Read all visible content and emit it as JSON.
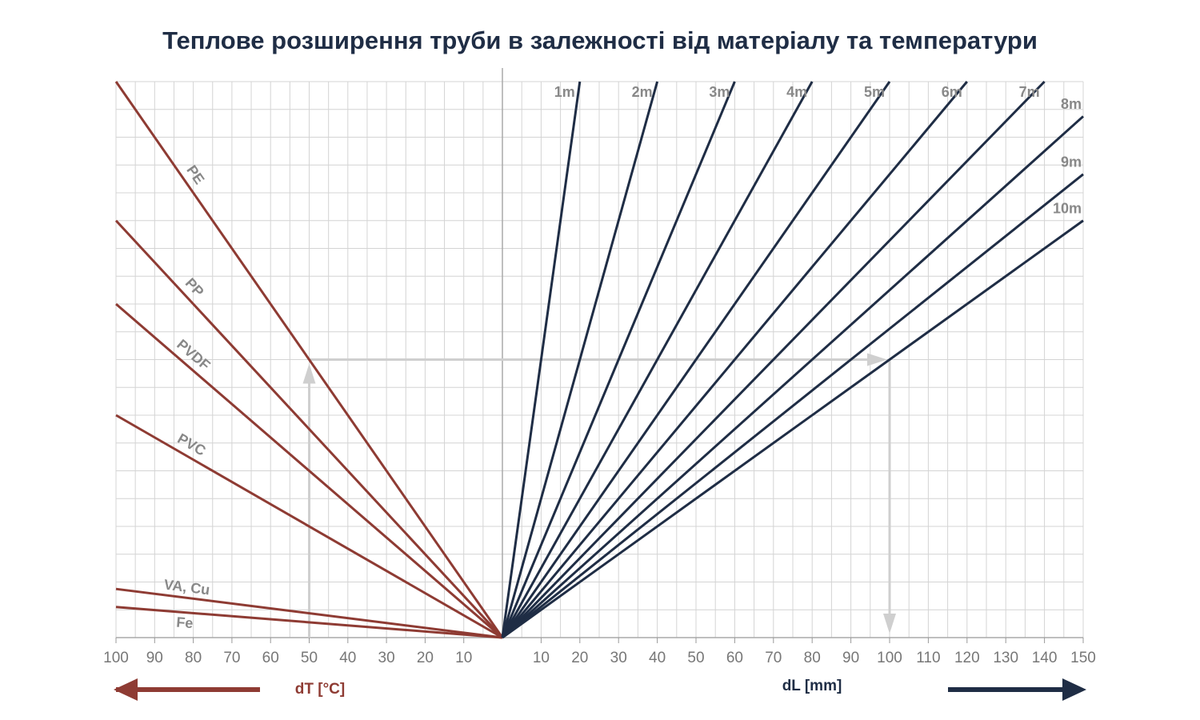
{
  "chart_data": {
    "type": "nomogram",
    "title": "Теплове розширення труби в залежності від матеріалу та температури",
    "x_left_label": "dT [°C]",
    "x_right_label": "dL [mm]",
    "ylim": [
      0,
      20
    ],
    "x_left_lim": [
      0,
      100
    ],
    "x_right_lim": [
      0,
      150
    ],
    "x_left_ticks": [
      100,
      90,
      80,
      70,
      60,
      50,
      40,
      30,
      20,
      10
    ],
    "x_right_ticks": [
      10,
      20,
      30,
      40,
      50,
      60,
      70,
      80,
      90,
      100,
      110,
      120,
      130,
      140,
      150
    ],
    "grid_left": [
      5,
      10,
      15,
      20,
      25,
      30,
      35,
      40,
      45,
      50,
      55,
      60,
      65,
      70,
      75,
      80,
      85,
      90,
      95,
      100
    ],
    "grid_right": [
      5,
      10,
      15,
      20,
      25,
      30,
      35,
      40,
      45,
      50,
      55,
      60,
      65,
      70,
      75,
      80,
      85,
      90,
      95,
      100,
      105,
      110,
      115,
      120,
      125,
      130,
      135,
      140,
      145,
      150
    ],
    "grid_y": [
      1,
      2,
      3,
      4,
      5,
      6,
      7,
      8,
      9,
      10,
      11,
      12,
      13,
      14,
      15,
      16,
      17,
      18,
      19,
      20
    ],
    "materials": {
      "color": "#8e3b33",
      "names": [
        "PE",
        "PP",
        "PVDF",
        "PVC",
        "VA, Cu",
        "Fe"
      ],
      "values": [
        20,
        15,
        12,
        8,
        1.75,
        1.1
      ]
    },
    "lengths": {
      "color": "#1f2d45",
      "values": [
        {
          "value": 1,
          "label": "1m"
        },
        {
          "value": 2,
          "label": "2m"
        },
        {
          "value": 3,
          "label": "3m"
        },
        {
          "value": 4,
          "label": "4m"
        },
        {
          "value": 5,
          "label": "5m"
        },
        {
          "value": 6,
          "label": "6m"
        },
        {
          "value": 7,
          "label": "7m"
        },
        {
          "value": 8,
          "label": "8m"
        },
        {
          "value": 9,
          "label": "9m"
        },
        {
          "value": 10,
          "label": "10m"
        }
      ]
    },
    "example": {
      "dT": 50,
      "dL": 100
    }
  }
}
